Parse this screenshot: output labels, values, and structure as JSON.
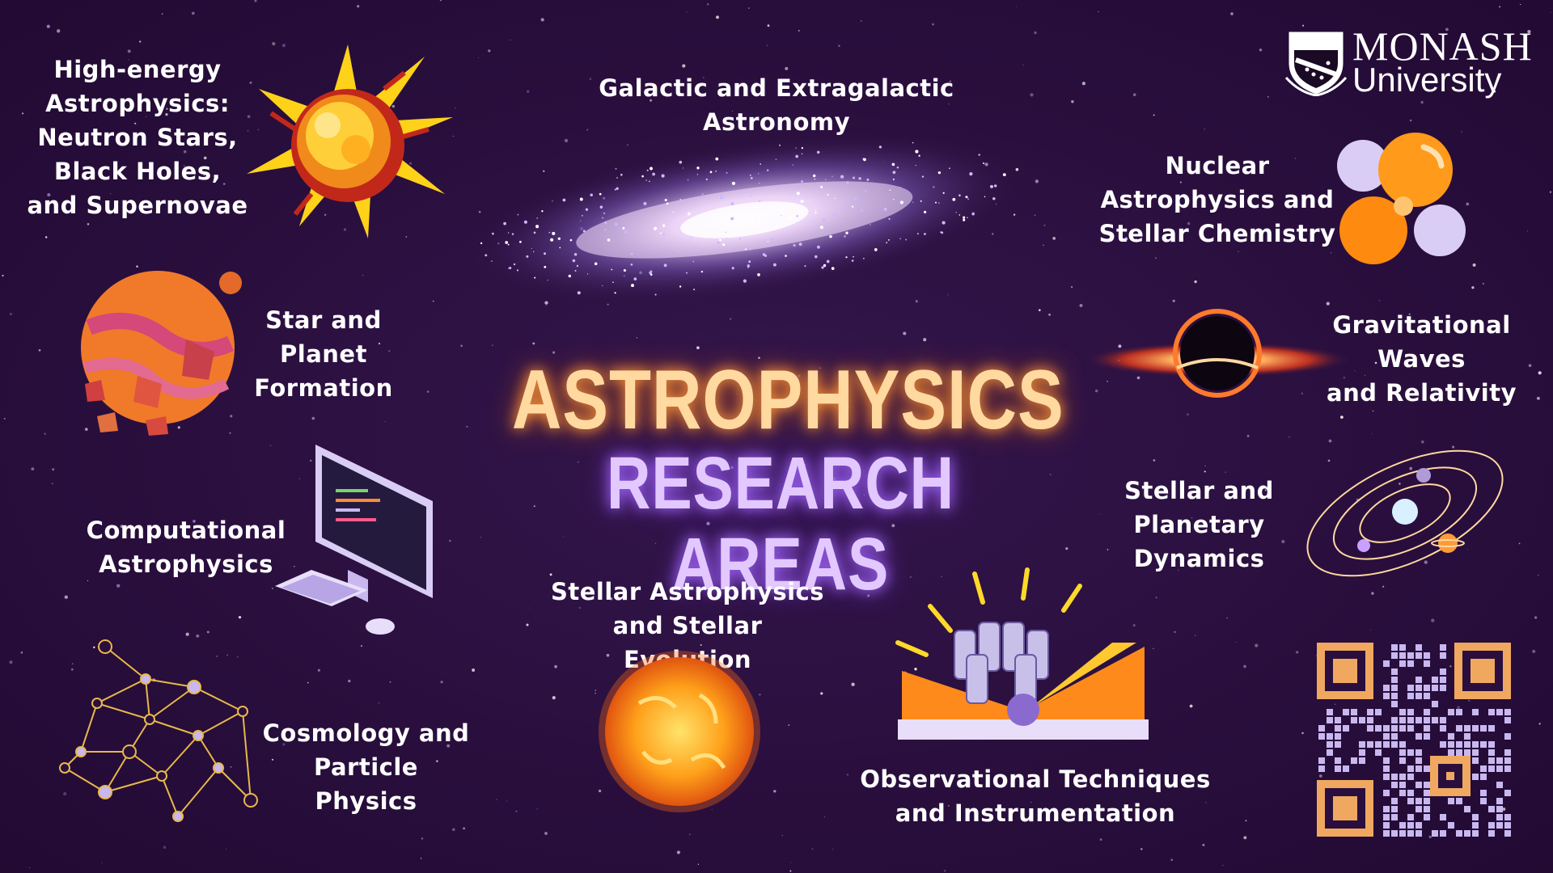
{
  "title": {
    "line1": "ASTROPHYSICS",
    "line2": "RESEARCH AREAS"
  },
  "logo": {
    "name": "MONASH",
    "subname": "University"
  },
  "areas": {
    "high_energy": [
      "High-energy",
      "Astrophysics:",
      "Neutron Stars,",
      "Black Holes,",
      "and Supernovae"
    ],
    "galactic": [
      "Galactic and Extragalactic",
      "Astronomy"
    ],
    "nuclear": [
      "Nuclear",
      "Astrophysics and",
      "Stellar Chemistry"
    ],
    "star_planet": [
      "Star and",
      "Planet",
      "Formation"
    ],
    "gravitational": [
      "Gravitational",
      "Waves",
      "and Relativity"
    ],
    "computational": [
      "Computational",
      "Astrophysics"
    ],
    "dynamics": [
      "Stellar and",
      "Planetary",
      "Dynamics"
    ],
    "stellar": [
      "Stellar Astrophysics",
      "and Stellar Evolution"
    ],
    "cosmology": [
      "Cosmology and",
      "Particle Physics"
    ],
    "observational": [
      "Observational Techniques",
      "and Instrumentation"
    ]
  },
  "colors": {
    "background": "#2a0f3e",
    "title_orange": "#ffd9a0",
    "title_purple": "#e2c8ff",
    "accent_orange": "#ff8a1c",
    "accent_lavender": "#c9b8f0"
  }
}
